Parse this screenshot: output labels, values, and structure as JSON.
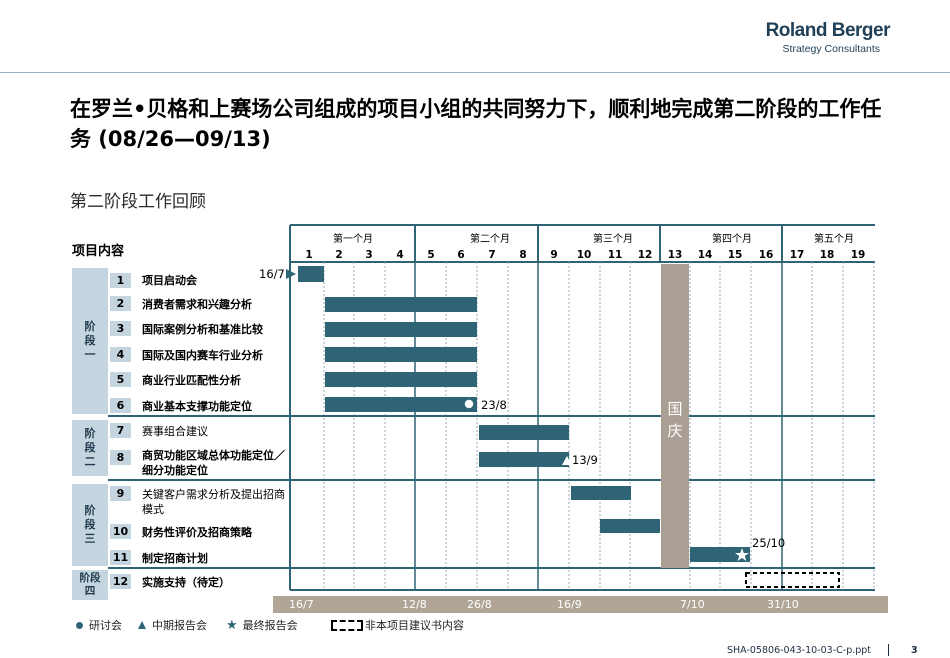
{
  "logo": {
    "name": "Roland Berger",
    "tagline": "Strategy Consultants"
  },
  "title": "在罗兰•贝格和上赛场公司组成的项目小组的共同努力下，顺利地完成第二阶段的工作任务 (08/26—09/13)",
  "subtitle": "第二阶段工作回顾",
  "row_header": "项目内容",
  "months": [
    "第一个月",
    "第二个月",
    "第三个月",
    "第四个月",
    "第五个月"
  ],
  "weeks": [
    "1",
    "2",
    "3",
    "4",
    "5",
    "6",
    "7",
    "8",
    "9",
    "10",
    "11",
    "12",
    "13",
    "14",
    "15",
    "16",
    "17",
    "18",
    "19"
  ],
  "stages": [
    {
      "label": "阶段一"
    },
    {
      "label": "阶段二"
    },
    {
      "label": "阶段三"
    },
    {
      "label": "阶段四"
    }
  ],
  "tasks": [
    {
      "num": "1",
      "label": "项目启动会"
    },
    {
      "num": "2",
      "label": "消费者需求和兴趣分析"
    },
    {
      "num": "3",
      "label": "国际案例分析和基准比较"
    },
    {
      "num": "4",
      "label": "国际及国内赛车行业分析"
    },
    {
      "num": "5",
      "label": "商业行业匹配性分析"
    },
    {
      "num": "6",
      "label": "商业基本支撑功能定位"
    },
    {
      "num": "7",
      "label": "赛事组合建议"
    },
    {
      "num": "8",
      "label": "商贸功能区域总体功能定位／细分功能定位"
    },
    {
      "num": "9",
      "label": "关键客户需求分析及提出招商模式"
    },
    {
      "num": "10",
      "label": "财务性评价及招商策略"
    },
    {
      "num": "11",
      "label": "制定招商计划"
    },
    {
      "num": "12",
      "label": "实施支持（待定）"
    }
  ],
  "holiday": "国庆",
  "markers": {
    "kickoff": "16/7",
    "workshop": "23/8",
    "midterm": "13/9",
    "final": "25/10"
  },
  "band_dates": [
    "16/7",
    "12/8",
    "26/8",
    "16/9",
    "7/10",
    "31/10"
  ],
  "legend": {
    "workshop": "研讨会",
    "midterm": "中期报告会",
    "final": "最终报告会",
    "outside": "非本项目建议书内容"
  },
  "footer": {
    "doc": "SHA-05806-043-10-03-C-p.ppt",
    "page": "3"
  },
  "colors": {
    "bar": "#2e6476",
    "stage": "#c5d5e0",
    "holiday": "#a99f94",
    "band": "#b0a597"
  }
}
